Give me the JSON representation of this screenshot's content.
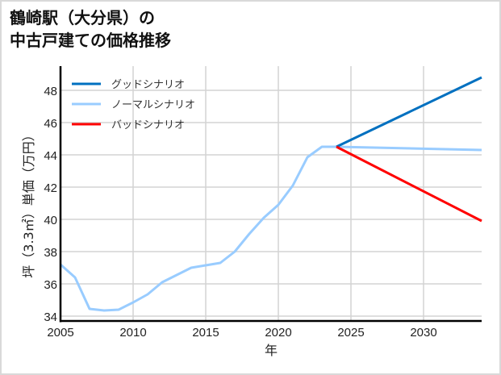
{
  "title": {
    "line1": "鶴崎駅（大分県）の",
    "line2": "中古戸建ての価格推移"
  },
  "chart_data": {
    "type": "line",
    "title": "鶴崎駅（大分県）の中古戸建ての価格推移",
    "xlabel": "年",
    "ylabel": "坪（3.3㎡）単価（万円）",
    "xlim": [
      2005,
      2034
    ],
    "ylim": [
      33.7,
      49.5
    ],
    "xticks": [
      2005,
      2010,
      2015,
      2020,
      2025,
      2030
    ],
    "yticks": [
      34,
      36,
      38,
      40,
      42,
      44,
      46,
      48
    ],
    "grid": true,
    "legend_position": "upper left",
    "series": [
      {
        "name": "グッドシナリオ",
        "color": "#0070c0",
        "x": [
          2024,
          2034
        ],
        "values": [
          44.5,
          48.8
        ]
      },
      {
        "name": "ノーマルシナリオ",
        "color": "#99ccff",
        "x": [
          2005,
          2006,
          2007,
          2008,
          2009,
          2010,
          2011,
          2012,
          2013,
          2014,
          2015,
          2016,
          2017,
          2018,
          2019,
          2020,
          2021,
          2022,
          2023,
          2024,
          2034
        ],
        "values": [
          37.2,
          36.4,
          34.45,
          34.35,
          34.4,
          34.85,
          35.35,
          36.1,
          36.55,
          37.0,
          37.15,
          37.3,
          38.0,
          39.1,
          40.1,
          40.9,
          42.1,
          43.85,
          44.5,
          44.5,
          44.3
        ]
      },
      {
        "name": "バッドシナリオ",
        "color": "#ff0000",
        "x": [
          2024,
          2034
        ],
        "values": [
          44.5,
          39.9
        ]
      }
    ]
  }
}
